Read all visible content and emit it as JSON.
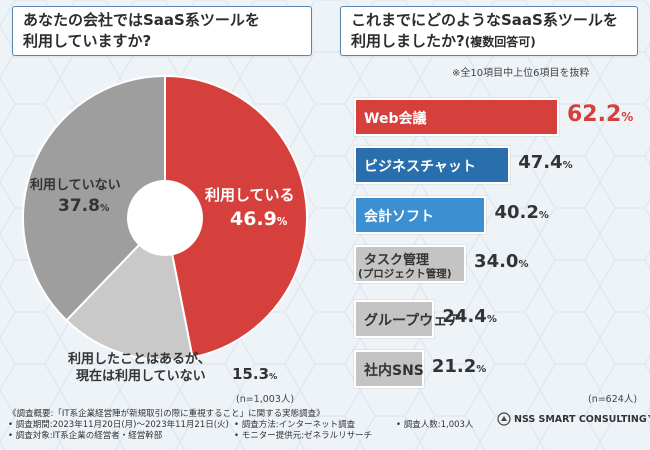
{
  "left_title": {
    "line1": "あなたの会社ではSaaS系ツールを",
    "line2": "利用していますか?"
  },
  "right_title": {
    "line1": "これまでにどのようなSaaS系ツールを",
    "line2": "利用しましたか?",
    "line2_small": "(複数回答可)"
  },
  "right_note": "※全10項目中上位6項目を抜粋",
  "pie_n": "(n=1,003人)",
  "bar_n": "(n=624人)",
  "chart_data": [
    {
      "type": "pie",
      "title": "あなたの会社ではSaaS系ツールを利用していますか?",
      "unit": "%",
      "slices": [
        {
          "label": "利用している",
          "value": 46.9,
          "value_text": "46.9",
          "color": "#d6403c"
        },
        {
          "label": "利用したことはあるが、",
          "label2": "現在は利用していない",
          "value": 15.3,
          "value_text": "15.3",
          "color": "#c9c9c9"
        },
        {
          "label": "利用していない",
          "value": 37.8,
          "value_text": "37.8",
          "color": "#9e9e9e"
        }
      ]
    },
    {
      "type": "bar",
      "title": "これまでにどのようなSaaS系ツールを利用しましたか?(複数回答可)",
      "unit": "%",
      "xlim": [
        0,
        70
      ],
      "bars": [
        {
          "label": "Web会議",
          "value": 62.2,
          "value_text": "62.2",
          "color": "#d6403c"
        },
        {
          "label": "ビジネスチャット",
          "value": 47.4,
          "value_text": "47.4",
          "color": "#2a6fad"
        },
        {
          "label": "会計ソフト",
          "value": 40.2,
          "value_text": "40.2",
          "color": "#3c8fd0"
        },
        {
          "label": "タスク管理",
          "label2": "(プロジェクト管理)",
          "value": 34.0,
          "value_text": "34.0",
          "color": "#c4c4c4"
        },
        {
          "label": "グループウェア",
          "value": 24.4,
          "value_text": "24.4",
          "color": "#c4c4c4"
        },
        {
          "label": "社内SNS",
          "value": 21.2,
          "value_text": "21.2",
          "color": "#c4c4c4"
        }
      ]
    }
  ],
  "footer": {
    "line1": "《調査概要:「IT系企業経営陣が新規取引の際に重視すること」に関する実態調査》",
    "line2a": "• 調査期間:2023年11月20日(月)〜2023年11月21日(火)",
    "line2b": "• 調査方法:インターネット調査",
    "line2c": "• 調査人数:1,003人",
    "line3a": "• 調査対象:IT系企業の経営者・経営幹部",
    "line3b": "• モニター提供元:ゼネラルリサーチ"
  },
  "logo_text": "NSS SMART CONSULTING™",
  "colors": {
    "red": "#d6403c",
    "blue_dark": "#2a6fad",
    "blue": "#3c8fd0",
    "gray": "#c4c4c4",
    "title_border": "#5a86b6"
  }
}
